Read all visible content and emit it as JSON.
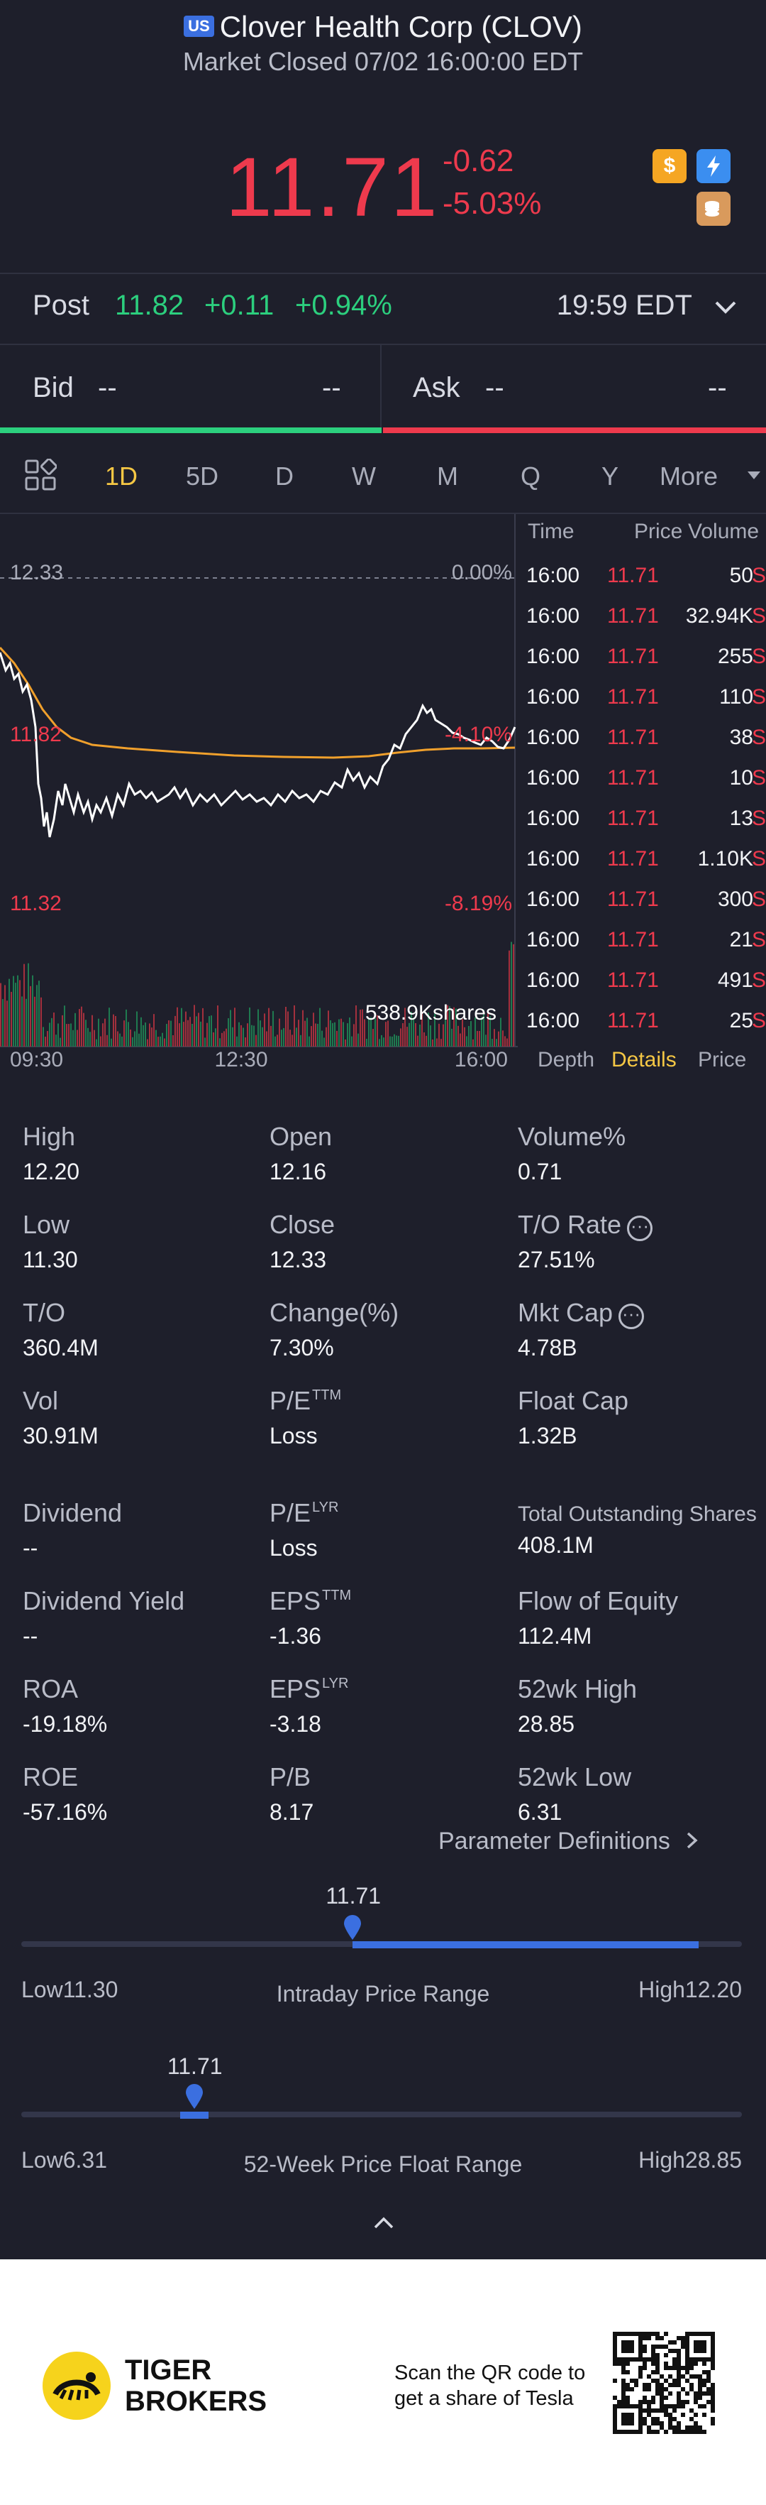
{
  "header": {
    "market_badge": "US",
    "title": "Clover Health Corp (CLOV)",
    "status": "Market Closed 07/02 16:00:00 EDT",
    "price": "11.71",
    "change": "-0.62",
    "change_pct": "-5.03%",
    "icons": [
      "dollar-icon",
      "lightning-icon",
      "coins-icon"
    ]
  },
  "post": {
    "label": "Post",
    "price": "11.82",
    "change": "+0.11",
    "change_pct": "+0.94%",
    "time": "19:59 EDT"
  },
  "bid": {
    "label": "Bid",
    "price": "--",
    "size": "--"
  },
  "ask": {
    "label": "Ask",
    "price": "--",
    "size": "--"
  },
  "tabs": [
    "1D",
    "5D",
    "D",
    "W",
    "M",
    "Q",
    "Y",
    "More"
  ],
  "active_tab": "1D",
  "chart": {
    "price_labels": {
      "top": "12.33",
      "mid": "11.82",
      "low": "11.32"
    },
    "pct_labels": {
      "top": "0.00%",
      "mid": "-4.10%",
      "low": "-8.19%"
    },
    "volume_label": "538.9Kshares",
    "x_labels": [
      "09:30",
      "12:30",
      "16:00"
    ]
  },
  "trades": {
    "headers": {
      "time": "Time",
      "price": "Price",
      "volume": "Volume"
    },
    "rows": [
      {
        "time": "16:00",
        "price": "11.71",
        "vol": "50",
        "side": "S"
      },
      {
        "time": "16:00",
        "price": "11.71",
        "vol": "32.94K",
        "side": "S"
      },
      {
        "time": "16:00",
        "price": "11.71",
        "vol": "255",
        "side": "S"
      },
      {
        "time": "16:00",
        "price": "11.71",
        "vol": "110",
        "side": "S"
      },
      {
        "time": "16:00",
        "price": "11.71",
        "vol": "38",
        "side": "S"
      },
      {
        "time": "16:00",
        "price": "11.71",
        "vol": "10",
        "side": "S"
      },
      {
        "time": "16:00",
        "price": "11.71",
        "vol": "13",
        "side": "S"
      },
      {
        "time": "16:00",
        "price": "11.71",
        "vol": "1.10K",
        "side": "S"
      },
      {
        "time": "16:00",
        "price": "11.71",
        "vol": "300",
        "side": "S"
      },
      {
        "time": "16:00",
        "price": "11.71",
        "vol": "21",
        "side": "S"
      },
      {
        "time": "16:00",
        "price": "11.71",
        "vol": "491",
        "side": "S"
      },
      {
        "time": "16:00",
        "price": "11.71",
        "vol": "25",
        "side": "S"
      }
    ],
    "bottom_tabs": [
      "Depth",
      "Details",
      "Price"
    ],
    "active_bottom_tab": "Details"
  },
  "stats": {
    "high": {
      "label": "High",
      "value": "12.20"
    },
    "open": {
      "label": "Open",
      "value": "12.16"
    },
    "volume_pct": {
      "label": "Volume%",
      "value": "0.71"
    },
    "low": {
      "label": "Low",
      "value": "11.30"
    },
    "close": {
      "label": "Close",
      "value": "12.33"
    },
    "to_rate": {
      "label": "T/O Rate",
      "value": "27.51%"
    },
    "to": {
      "label": "T/O",
      "value": "360.4M"
    },
    "change_pct": {
      "label": "Change(%)",
      "value": "7.30%"
    },
    "mkt_cap": {
      "label": "Mkt Cap",
      "value": "4.78B"
    },
    "vol": {
      "label": "Vol",
      "value": "30.91M"
    },
    "pe_ttm": {
      "label": "P/E",
      "sup": "TTM",
      "value": "Loss"
    },
    "float_cap": {
      "label": "Float Cap",
      "value": "1.32B"
    },
    "dividend": {
      "label": "Dividend",
      "value": "--"
    },
    "pe_lyr": {
      "label": "P/E",
      "sup": "LYR",
      "value": "Loss"
    },
    "total_shares": {
      "label": "Total Outstanding Shares",
      "value": "408.1M"
    },
    "dividend_yield": {
      "label": "Dividend Yield",
      "value": "--"
    },
    "eps_ttm": {
      "label": "EPS",
      "sup": "TTM",
      "value": "-1.36"
    },
    "flow_equity": {
      "label": "Flow of Equity",
      "value": "112.4M"
    },
    "roa": {
      "label": "ROA",
      "value": "-19.18%"
    },
    "eps_lyr": {
      "label": "EPS",
      "sup": "LYR",
      "value": "-3.18"
    },
    "wk52_high": {
      "label": "52wk High",
      "value": "28.85"
    },
    "roe": {
      "label": "ROE",
      "value": "-57.16%"
    },
    "pb": {
      "label": "P/B",
      "value": "8.17"
    },
    "wk52_low": {
      "label": "52wk Low",
      "value": "6.31"
    },
    "param_defs": "Parameter Definitions"
  },
  "intraday_range": {
    "title": "Intraday Price Range",
    "current": "11.71",
    "low_label": "Low",
    "low": "11.30",
    "high_label": "High",
    "high": "12.20",
    "position": 0.46
  },
  "week52_range": {
    "title": "52-Week Price Float Range",
    "current": "11.71",
    "low_label": "Low",
    "low": "6.31",
    "high_label": "High",
    "high": "28.85",
    "position": 0.24
  },
  "footer": {
    "brand_line1": "TIGER",
    "brand_line2": "BROKERS",
    "cta_line1": "Scan the QR code to",
    "cta_line2": "get a share of Tesla"
  },
  "colors": {
    "up": "#2ccf7e",
    "down": "#ee3a4d",
    "accent": "#f5c744",
    "blue": "#3b6fe0"
  }
}
